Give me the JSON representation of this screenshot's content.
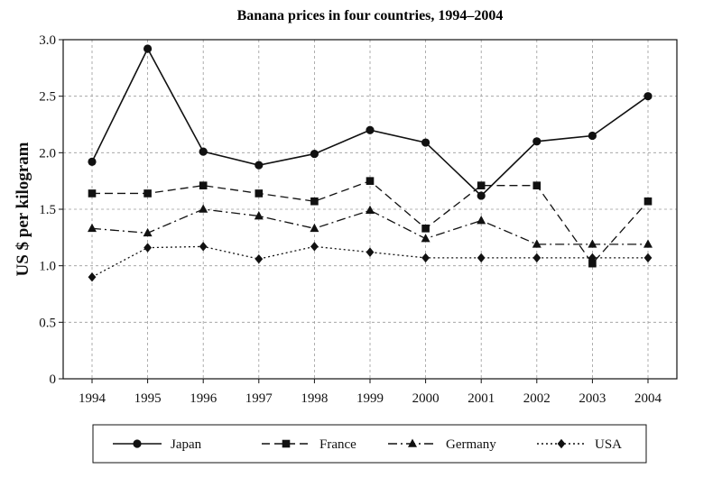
{
  "chart_data": {
    "type": "line",
    "title": "Banana prices in four countries, 1994–2004",
    "xlabel": "",
    "ylabel": "US $ per kilogram",
    "x": [
      "1994",
      "1995",
      "1996",
      "1997",
      "1998",
      "1999",
      "2000",
      "2001",
      "2002",
      "2003",
      "2004"
    ],
    "ylim": [
      0,
      3.0
    ],
    "yticks": [
      "0",
      "0.5",
      "1.0",
      "1.5",
      "2.0",
      "2.5",
      "3.0"
    ],
    "grid": true,
    "legend_position": "bottom",
    "series": [
      {
        "name": "Japan",
        "values": [
          1.92,
          2.92,
          2.01,
          1.89,
          1.99,
          2.2,
          2.09,
          1.62,
          2.1,
          2.15,
          2.5
        ],
        "marker": "circle",
        "dash": "solid"
      },
      {
        "name": "France",
        "values": [
          1.64,
          1.64,
          1.71,
          1.64,
          1.57,
          1.75,
          1.33,
          1.71,
          1.71,
          1.02,
          1.57
        ],
        "marker": "square",
        "dash": "dashed"
      },
      {
        "name": "Germany",
        "values": [
          1.33,
          1.29,
          1.5,
          1.44,
          1.33,
          1.49,
          1.24,
          1.4,
          1.19,
          1.19,
          1.19
        ],
        "marker": "triangle",
        "dash": "dashdot"
      },
      {
        "name": "USA",
        "values": [
          0.9,
          1.16,
          1.17,
          1.06,
          1.17,
          1.12,
          1.07,
          1.07,
          1.07,
          1.07,
          1.07
        ],
        "marker": "diamond",
        "dash": "dotted"
      }
    ]
  }
}
